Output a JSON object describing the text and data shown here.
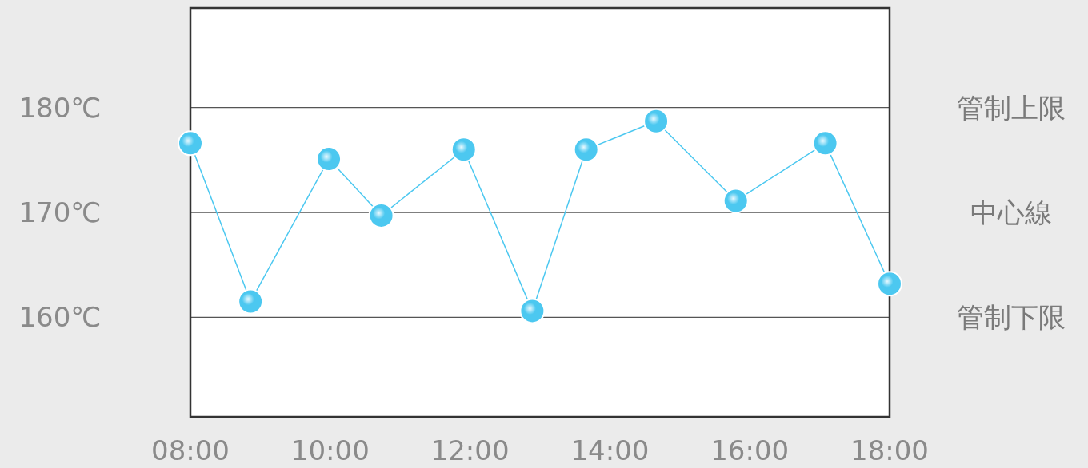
{
  "chart_data": {
    "type": "line",
    "marker": "circle",
    "line_style": "solid",
    "grid": false,
    "x": [
      8.0,
      8.86,
      9.98,
      10.73,
      11.91,
      12.89,
      13.66,
      14.66,
      15.8,
      17.08,
      18.0
    ],
    "series": [
      {
        "color": "#4cc8f0",
        "values": [
          176.6,
          161.5,
          175.1,
          169.7,
          176.0,
          160.6,
          176.0,
          178.7,
          171.1,
          176.6,
          163.2
        ]
      }
    ],
    "xlim": [
      8,
      18
    ],
    "xticks": [
      {
        "value": 8,
        "label": "08:00"
      },
      {
        "value": 10,
        "label": "10:00"
      },
      {
        "value": 12,
        "label": "12:00"
      },
      {
        "value": 14,
        "label": "14:00"
      },
      {
        "value": 16,
        "label": "16:00"
      },
      {
        "value": 18,
        "label": "18:00"
      }
    ],
    "ylim": [
      150.5,
      189.5
    ],
    "yticks": [
      {
        "value": 160,
        "label": "160℃"
      },
      {
        "value": 170,
        "label": "170℃"
      },
      {
        "value": 180,
        "label": "180℃"
      }
    ],
    "ref_lines": [
      {
        "axis": "y",
        "value": 180,
        "label": "管制上限",
        "color": "#555555"
      },
      {
        "axis": "y",
        "value": 170,
        "label": "中心線",
        "color": "#555555"
      },
      {
        "axis": "y",
        "value": 160,
        "label": "管制下限",
        "color": "#555555"
      }
    ]
  }
}
